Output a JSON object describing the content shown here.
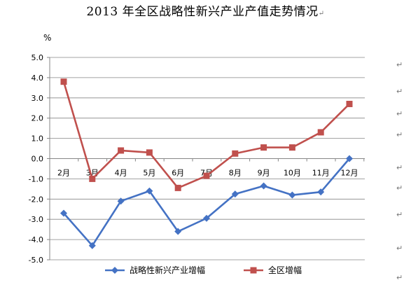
{
  "document": {
    "title": "2013 年全区战略性新兴产业产值走势情况",
    "paragraph_mark": "↵"
  },
  "chart_data": {
    "type": "line",
    "title": "",
    "ylabel": "%",
    "xlabel": "",
    "ylim": [
      -5.0,
      5.0
    ],
    "yticks": [
      "5.0",
      "4.0",
      "3.0",
      "2.0",
      "1.0",
      "0.0",
      "-1.0",
      "-2.0",
      "-3.0",
      "-4.0",
      "-5.0"
    ],
    "ytick_values": [
      5,
      4,
      3,
      2,
      1,
      0,
      -1,
      -2,
      -3,
      -4,
      -5
    ],
    "grid": true,
    "legend_position": "bottom",
    "categories": [
      "2月",
      "3月",
      "4月",
      "5月",
      "6月",
      "7月",
      "8月",
      "9月",
      "10月",
      "11月",
      "12月"
    ],
    "series": [
      {
        "name": "战略性新兴产业增幅",
        "color": "#4472C4",
        "marker": "diamond",
        "values": [
          -2.7,
          -4.3,
          -2.1,
          -1.6,
          -3.6,
          -2.95,
          -1.75,
          -1.35,
          -1.8,
          -1.65,
          0.0
        ]
      },
      {
        "name": "全区增幅",
        "color": "#C0504D",
        "marker": "square",
        "values": [
          3.8,
          -1.0,
          0.4,
          0.3,
          -1.45,
          -0.85,
          0.25,
          0.55,
          0.55,
          1.3,
          2.7
        ]
      }
    ]
  }
}
